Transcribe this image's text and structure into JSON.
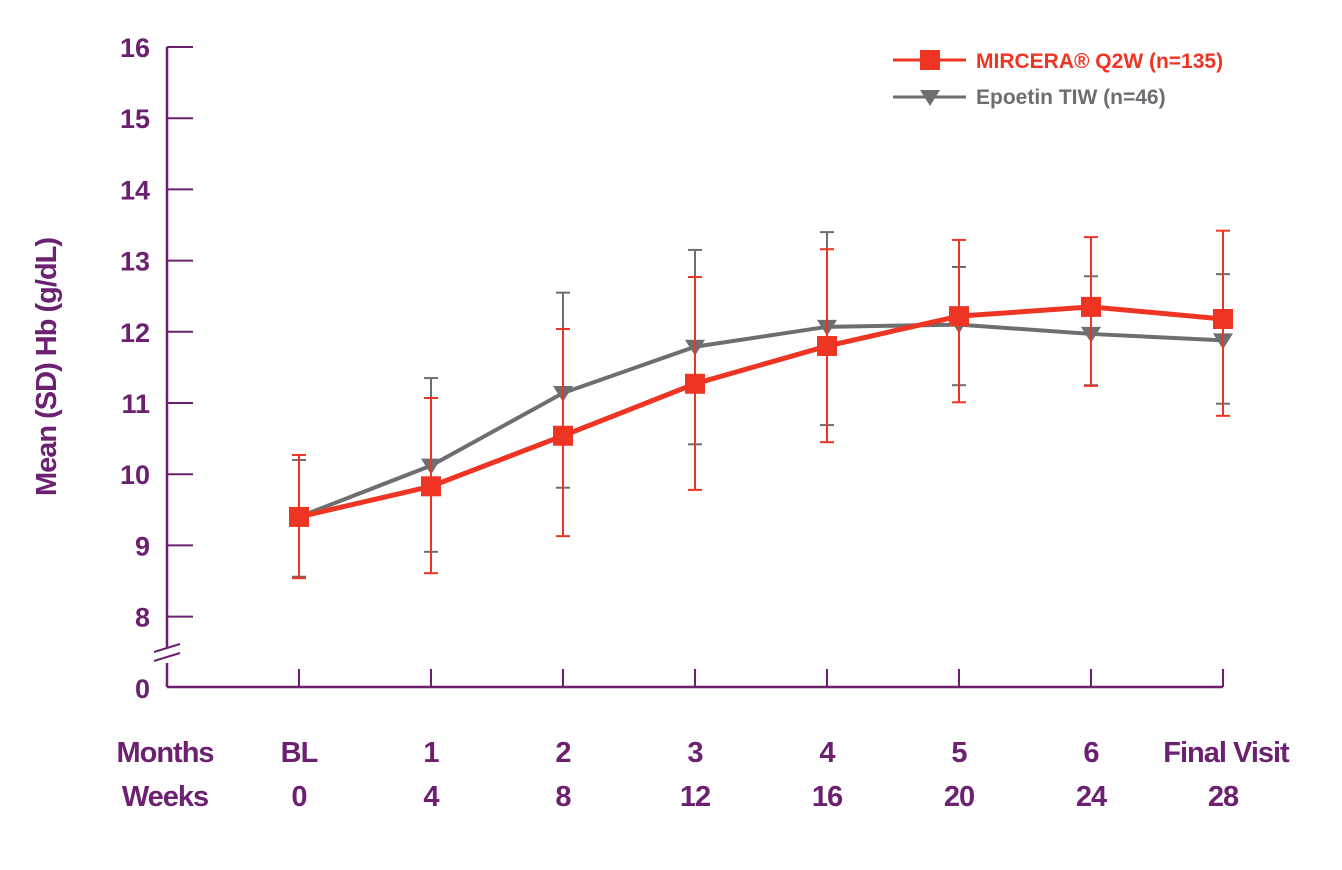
{
  "chart_data": {
    "type": "line",
    "ylabel": "Mean (SD) Hb (g/dL)",
    "ylim": [
      8,
      16
    ],
    "y_ticks": [
      "16",
      "15",
      "14",
      "13",
      "12",
      "11",
      "10",
      "9",
      "8"
    ],
    "y_break_label": "0",
    "axis_break": true,
    "x_row_labels": [
      "Months",
      "Weeks"
    ],
    "categories_months": [
      "BL",
      "1",
      "2",
      "3",
      "4",
      "5",
      "6",
      "Final Visit"
    ],
    "categories_weeks": [
      "0",
      "4",
      "8",
      "12",
      "16",
      "20",
      "24",
      "28"
    ],
    "grid": false,
    "legend_position": "top-right",
    "series": [
      {
        "name": "MIRCERA® Q2W (n=135)",
        "color": "#ee3524",
        "marker": "square",
        "values": [
          9.4,
          9.83,
          10.54,
          11.27,
          11.8,
          12.22,
          12.35,
          12.18
        ],
        "upper": [
          10.27,
          11.07,
          12.04,
          12.77,
          13.16,
          13.29,
          13.33,
          13.42
        ],
        "lower": [
          8.54,
          8.61,
          9.13,
          9.78,
          10.45,
          11.01,
          11.24,
          10.82
        ]
      },
      {
        "name": "Epoetin TIW (n=46)",
        "color": "#6d6e71",
        "marker": "triangle-down",
        "values": [
          9.4,
          10.12,
          11.14,
          11.79,
          12.07,
          12.1,
          11.97,
          11.88
        ],
        "upper": [
          10.2,
          11.35,
          12.55,
          13.15,
          13.4,
          12.91,
          12.78,
          12.81
        ],
        "lower": [
          8.56,
          8.91,
          9.81,
          10.42,
          10.69,
          11.25,
          11.25,
          10.99
        ]
      }
    ],
    "axis_color": "#6b2070"
  }
}
